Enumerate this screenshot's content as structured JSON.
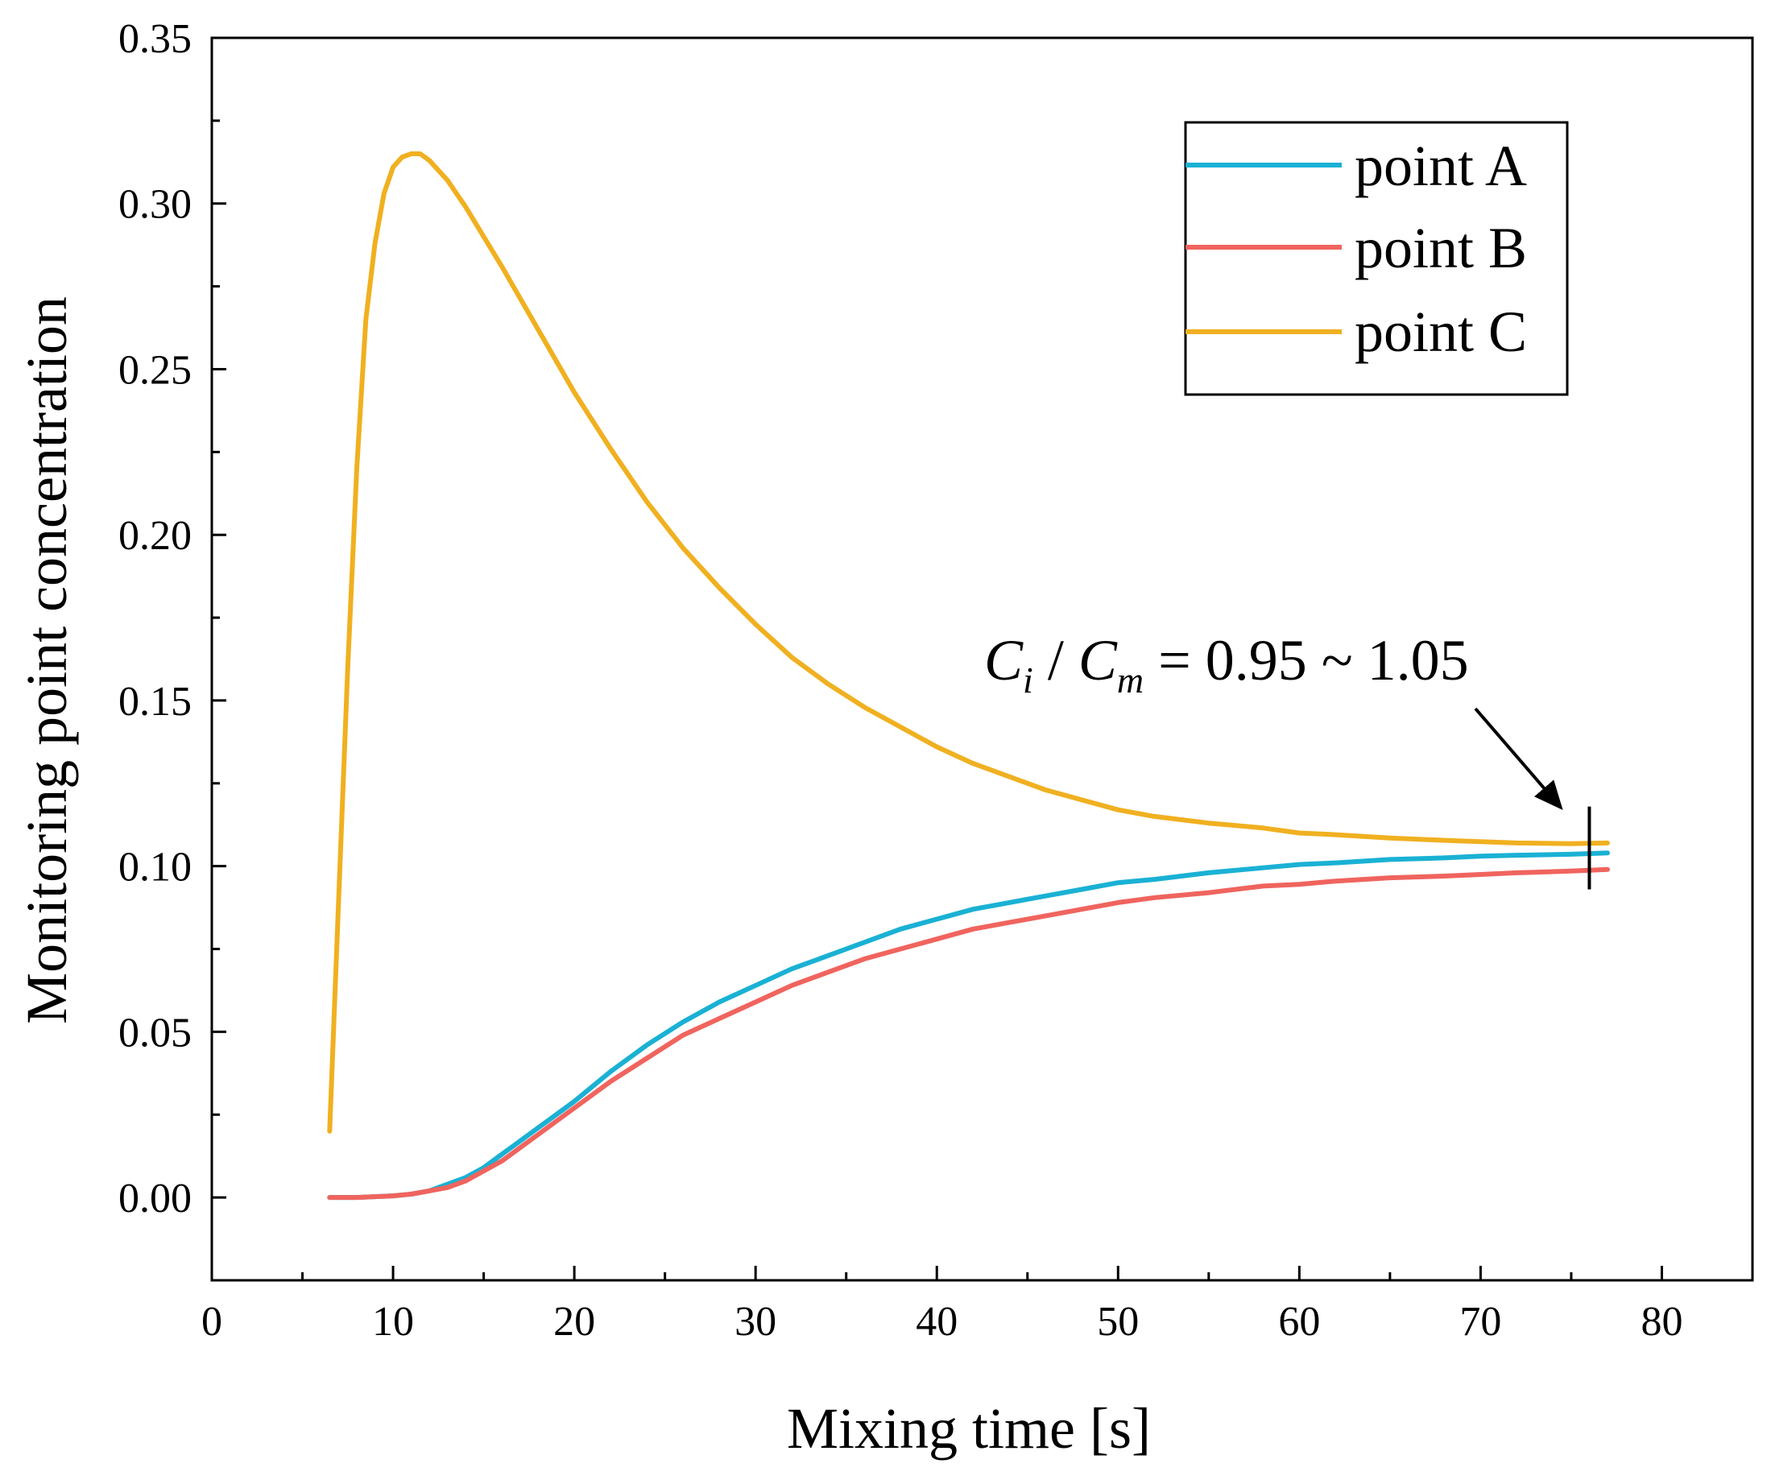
{
  "chart_data": {
    "type": "line",
    "title": "",
    "xlabel": "Mixing time [s]",
    "ylabel": "Monitoring point concentration",
    "xlim": [
      0,
      85
    ],
    "ylim": [
      -0.025,
      0.35
    ],
    "xticks": [
      0,
      10,
      20,
      30,
      40,
      50,
      60,
      70,
      80
    ],
    "xtick_labels": [
      "0",
      "10",
      "20",
      "30",
      "40",
      "50",
      "60",
      "70",
      "80"
    ],
    "yticks": [
      0.0,
      0.05,
      0.1,
      0.15,
      0.2,
      0.25,
      0.3,
      0.35
    ],
    "ytick_labels": [
      "0.00",
      "0.05",
      "0.10",
      "0.15",
      "0.20",
      "0.25",
      "0.30",
      "0.35"
    ],
    "grid": false,
    "legend_position": "top-right",
    "series": [
      {
        "name": "point A",
        "color": "#1ab1d4",
        "x": [
          6.5,
          8,
          10,
          11,
          12,
          13,
          14,
          15,
          16,
          17,
          18,
          19,
          20,
          22,
          24,
          26,
          28,
          30,
          32,
          34,
          36,
          38,
          40,
          42,
          44,
          46,
          48,
          50,
          52,
          55,
          58,
          60,
          62,
          65,
          68,
          70,
          72,
          75,
          77
        ],
        "y": [
          0.0,
          0.0,
          0.0005,
          0.001,
          0.002,
          0.004,
          0.006,
          0.009,
          0.013,
          0.017,
          0.021,
          0.025,
          0.029,
          0.038,
          0.046,
          0.053,
          0.059,
          0.064,
          0.069,
          0.073,
          0.077,
          0.081,
          0.084,
          0.087,
          0.089,
          0.091,
          0.093,
          0.095,
          0.096,
          0.098,
          0.0995,
          0.1005,
          0.101,
          0.102,
          0.1025,
          0.103,
          0.1033,
          0.1036,
          0.104
        ]
      },
      {
        "name": "point B",
        "color": "#f0645e",
        "x": [
          6.5,
          8,
          10,
          11,
          12,
          13,
          14,
          15,
          16,
          17,
          18,
          19,
          20,
          22,
          24,
          26,
          28,
          30,
          32,
          34,
          36,
          38,
          40,
          42,
          44,
          46,
          48,
          50,
          52,
          55,
          58,
          60,
          62,
          65,
          68,
          70,
          72,
          75,
          77
        ],
        "y": [
          0.0,
          0.0,
          0.0005,
          0.001,
          0.002,
          0.003,
          0.005,
          0.008,
          0.011,
          0.015,
          0.019,
          0.023,
          0.027,
          0.035,
          0.042,
          0.049,
          0.054,
          0.059,
          0.064,
          0.068,
          0.072,
          0.075,
          0.078,
          0.081,
          0.083,
          0.085,
          0.087,
          0.089,
          0.0905,
          0.092,
          0.094,
          0.0945,
          0.0955,
          0.0965,
          0.097,
          0.0975,
          0.098,
          0.0985,
          0.099
        ]
      },
      {
        "name": "point C",
        "color": "#f0b020",
        "x": [
          6.5,
          7,
          7.5,
          8,
          8.5,
          9,
          9.5,
          10,
          10.5,
          11,
          11.5,
          12,
          13,
          14,
          15,
          16,
          18,
          20,
          22,
          24,
          26,
          28,
          30,
          32,
          34,
          36,
          38,
          40,
          42,
          44,
          46,
          48,
          50,
          52,
          55,
          58,
          60,
          62,
          65,
          68,
          70,
          72,
          75,
          77
        ],
        "y": [
          0.02,
          0.09,
          0.16,
          0.22,
          0.265,
          0.288,
          0.303,
          0.311,
          0.314,
          0.315,
          0.315,
          0.313,
          0.307,
          0.299,
          0.29,
          0.281,
          0.262,
          0.243,
          0.226,
          0.21,
          0.196,
          0.184,
          0.173,
          0.163,
          0.155,
          0.148,
          0.142,
          0.136,
          0.131,
          0.127,
          0.123,
          0.12,
          0.117,
          0.115,
          0.113,
          0.1115,
          0.11,
          0.1095,
          0.1085,
          0.1078,
          0.1074,
          0.107,
          0.1068,
          0.107
        ]
      }
    ],
    "annotation": {
      "c_letter": "C",
      "sub_i": "i",
      "slash": " / ",
      "sub_m": "m",
      "rest": " = 0.95 ~ 1.05",
      "marker_x": 76,
      "marker_y_range": [
        0.093,
        0.118
      ]
    }
  }
}
